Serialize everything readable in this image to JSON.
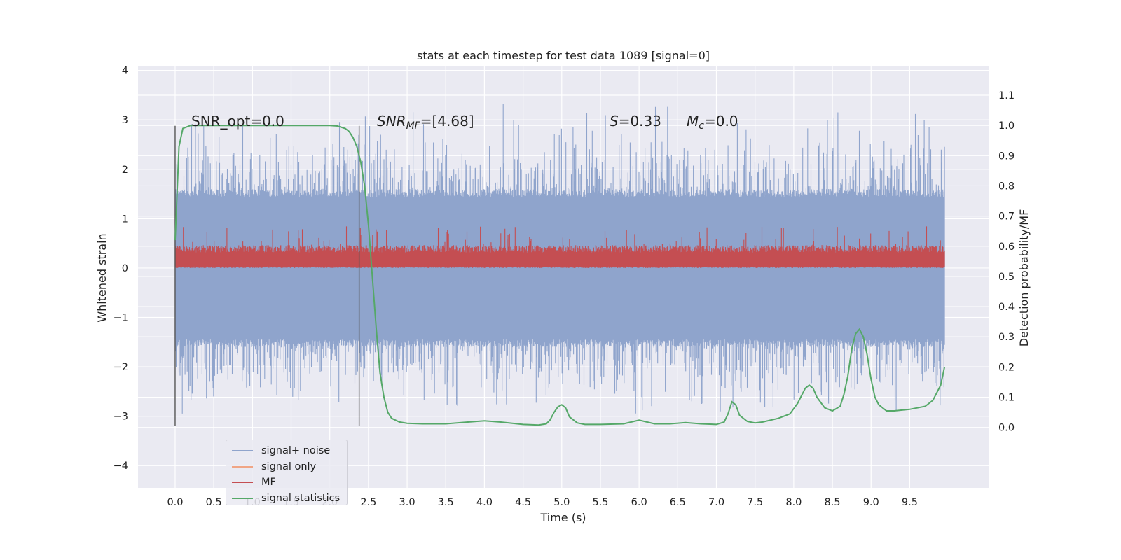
{
  "chart_data": {
    "type": "line",
    "title": "stats at each timestep for test data 1089 [signal=0]",
    "xlabel": "Time (s)",
    "ylabel": "Whitened strain",
    "ylabel_right": "Detection probability/MF",
    "xlim": [
      -0.48,
      10.52
    ],
    "ylim": [
      -4.45,
      4.08
    ],
    "ylim_right": [
      -0.2,
      1.195
    ],
    "x_ticks": [
      "0.0",
      "0.5",
      "1.0",
      "1.5",
      "2.0",
      "2.5",
      "3.0",
      "3.5",
      "4.0",
      "4.5",
      "5.0",
      "5.5",
      "6.0",
      "6.5",
      "7.0",
      "7.5",
      "8.0",
      "8.5",
      "9.0",
      "9.5"
    ],
    "y_ticks": [
      "−4",
      "−3",
      "−2",
      "−1",
      "0",
      "1",
      "2",
      "3",
      "4"
    ],
    "y_ticks_right": [
      "0.0",
      "0.1",
      "0.2",
      "0.3",
      "0.4",
      "0.5",
      "0.6",
      "0.7",
      "0.8",
      "0.9",
      "1.0",
      "1.1"
    ],
    "grid": true,
    "legend_position": "bottom-left",
    "annotations": {
      "snr_opt": "SNR_opt=0.0",
      "snr_mf_base": "SNR",
      "snr_mf_sub": "MF",
      "snr_mf_value": "=[4.68]",
      "s_base": "S",
      "s_value": "=0.33",
      "mc_base": "M",
      "mc_sub": "c",
      "mc_value": "=0.0"
    },
    "vertical_markers": [
      0.0,
      2.38
    ],
    "series": [
      {
        "name": "signal+ noise",
        "color": "#8fa4cc",
        "axis": "left",
        "description": "dense noise band roughly ±1.6 with spikes up to about ±3.5",
        "t_range": [
          0.0,
          9.95
        ],
        "core_amplitude": 1.6,
        "max_amplitude": 3.7
      },
      {
        "name": "signal only",
        "color": "#f0a585",
        "axis": "left",
        "values": []
      },
      {
        "name": "MF",
        "color": "#c44e52",
        "axis": "left",
        "description": "band roughly between 0 and 0.4 with spikes near 1.0",
        "t_range": [
          0.0,
          9.95
        ],
        "band": [
          0.0,
          0.42
        ],
        "max": 1.0
      },
      {
        "name": "signal statistics",
        "color": "#55a868",
        "axis": "right",
        "x": [
          0.0,
          0.05,
          0.1,
          0.15,
          0.2,
          0.3,
          0.5,
          1.0,
          1.5,
          1.8,
          2.0,
          2.1,
          2.2,
          2.25,
          2.3,
          2.35,
          2.4,
          2.45,
          2.5,
          2.55,
          2.6,
          2.65,
          2.7,
          2.75,
          2.8,
          2.9,
          3.0,
          3.2,
          3.5,
          3.8,
          4.0,
          4.2,
          4.5,
          4.7,
          4.8,
          4.85,
          4.9,
          4.95,
          5.0,
          5.05,
          5.1,
          5.2,
          5.3,
          5.5,
          5.8,
          5.9,
          6.0,
          6.1,
          6.2,
          6.4,
          6.6,
          6.8,
          7.0,
          7.1,
          7.15,
          7.2,
          7.25,
          7.3,
          7.4,
          7.5,
          7.6,
          7.8,
          7.95,
          8.05,
          8.15,
          8.2,
          8.25,
          8.3,
          8.4,
          8.5,
          8.6,
          8.65,
          8.7,
          8.75,
          8.8,
          8.85,
          8.9,
          8.95,
          9.0,
          9.05,
          9.1,
          9.2,
          9.3,
          9.5,
          9.7,
          9.8,
          9.9,
          9.95
        ],
        "values": [
          0.62,
          0.93,
          0.99,
          0.995,
          1.0,
          1.0,
          1.0,
          1.0,
          1.0,
          1.0,
          1.0,
          0.998,
          0.99,
          0.98,
          0.96,
          0.93,
          0.88,
          0.8,
          0.67,
          0.5,
          0.33,
          0.18,
          0.1,
          0.05,
          0.03,
          0.018,
          0.014,
          0.012,
          0.012,
          0.018,
          0.022,
          0.018,
          0.01,
          0.008,
          0.012,
          0.025,
          0.05,
          0.068,
          0.075,
          0.065,
          0.035,
          0.015,
          0.01,
          0.01,
          0.012,
          0.018,
          0.024,
          0.018,
          0.012,
          0.012,
          0.016,
          0.012,
          0.01,
          0.018,
          0.045,
          0.085,
          0.075,
          0.04,
          0.02,
          0.015,
          0.018,
          0.03,
          0.045,
          0.08,
          0.13,
          0.14,
          0.13,
          0.1,
          0.065,
          0.055,
          0.07,
          0.11,
          0.17,
          0.26,
          0.31,
          0.325,
          0.3,
          0.24,
          0.16,
          0.1,
          0.075,
          0.055,
          0.055,
          0.06,
          0.07,
          0.09,
          0.14,
          0.2
        ]
      }
    ]
  }
}
